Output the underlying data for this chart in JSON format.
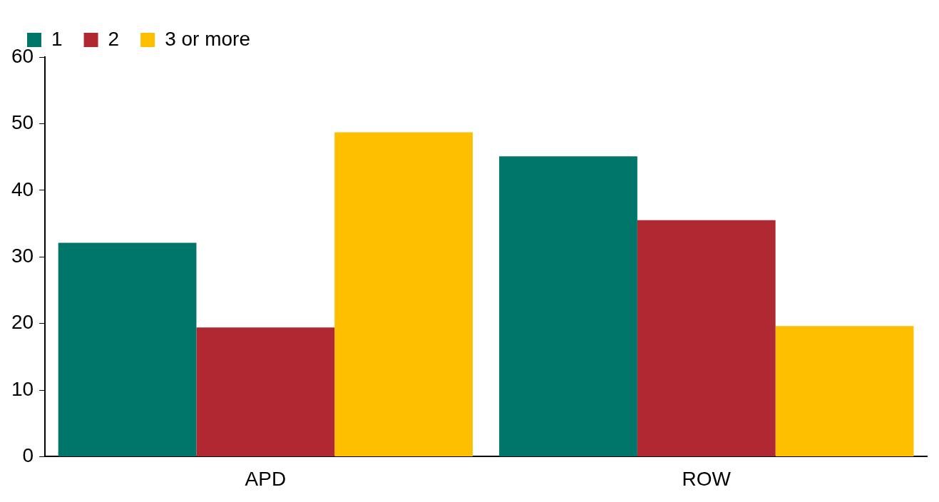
{
  "chart_data": {
    "type": "bar",
    "categories": [
      "APD",
      "ROW"
    ],
    "series": [
      {
        "name": "1",
        "color": "#00756a",
        "values": [
          32.1,
          45.1
        ]
      },
      {
        "name": "2",
        "color": "#b02832",
        "values": [
          19.4,
          35.5
        ]
      },
      {
        "name": "3 or more",
        "color": "#fdbf00",
        "values": [
          48.7,
          19.6
        ]
      }
    ],
    "ylim": [
      0,
      60
    ],
    "yticks": [
      0,
      10,
      20,
      30,
      40,
      50,
      60
    ],
    "grid": false,
    "legend": "top left"
  }
}
